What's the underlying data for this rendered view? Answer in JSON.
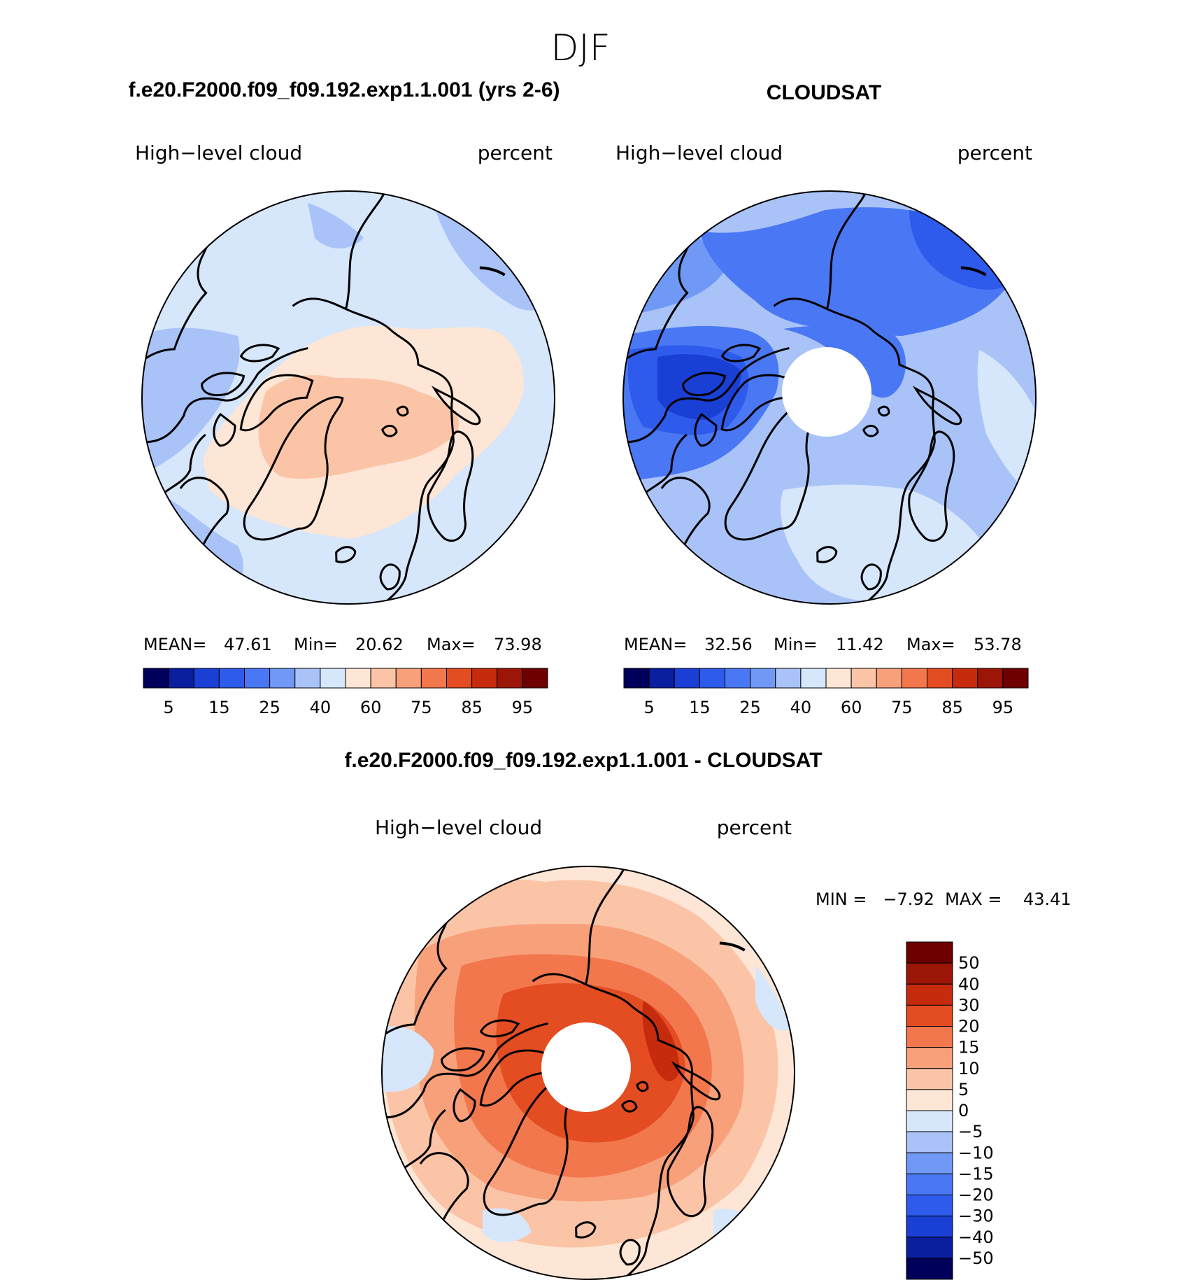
{
  "season": "DJF",
  "panels": {
    "model": {
      "title": "f.e20.F2000.f09_f09.192.exp1.1.001 (yrs 2-6)",
      "left_label": "High−level cloud",
      "right_label": "percent",
      "stats": {
        "mean_label": "MEAN=",
        "mean": "47.61",
        "min_label": "Min=",
        "min": "20.62",
        "max_label": "Max=",
        "max": "73.98"
      }
    },
    "obs": {
      "title": "CLOUDSAT",
      "left_label": "High−level cloud",
      "right_label": "percent",
      "stats": {
        "mean_label": "MEAN=",
        "mean": "32.56",
        "min_label": "Min=",
        "min": "11.42",
        "max_label": "Max=",
        "max": "53.78"
      }
    },
    "diff": {
      "title": "f.e20.F2000.f09_f09.192.exp1.1.001 - CLOUDSAT",
      "left_label": "High−level cloud",
      "right_label": "percent",
      "minmax_text": "MIN =   −7.92  MAX =    43.41"
    }
  },
  "chart_data": [
    {
      "type": "heatmap",
      "projection": "north polar stereographic",
      "title": "f.e20.F2000.f09_f09.192.exp1.1.001 (yrs 2-6)",
      "variable": "High-level cloud",
      "units": "percent",
      "mean": 47.61,
      "min": 20.62,
      "max": 73.98,
      "colorbar": {
        "levels": [
          5,
          10,
          15,
          20,
          25,
          30,
          40,
          50,
          60,
          70,
          75,
          80,
          85,
          90,
          95
        ],
        "tick_labels": [
          "5",
          "15",
          "25",
          "40",
          "60",
          "75",
          "85",
          "95"
        ],
        "colors": [
          "#00005a",
          "#0a1ea0",
          "#1a3fd4",
          "#2e5bec",
          "#4a78f4",
          "#7099f6",
          "#a9c3f8",
          "#d6e6fb",
          "#fde6d5",
          "#fbc4a6",
          "#f7a07a",
          "#f2774d",
          "#e44c22",
          "#c72b0e",
          "#9c1607",
          "#6e0000"
        ]
      }
    },
    {
      "type": "heatmap",
      "projection": "north polar stereographic",
      "title": "CLOUDSAT",
      "variable": "High-level cloud",
      "units": "percent",
      "mean": 32.56,
      "min": 11.42,
      "max": 53.78,
      "colorbar": {
        "levels": [
          5,
          10,
          15,
          20,
          25,
          30,
          40,
          50,
          60,
          70,
          75,
          80,
          85,
          90,
          95
        ],
        "tick_labels": [
          "5",
          "15",
          "25",
          "40",
          "60",
          "75",
          "85",
          "95"
        ],
        "colors": [
          "#00005a",
          "#0a1ea0",
          "#1a3fd4",
          "#2e5bec",
          "#4a78f4",
          "#7099f6",
          "#a9c3f8",
          "#d6e6fb",
          "#fde6d5",
          "#fbc4a6",
          "#f7a07a",
          "#f2774d",
          "#e44c22",
          "#c72b0e",
          "#9c1607",
          "#6e0000"
        ]
      }
    },
    {
      "type": "heatmap",
      "projection": "north polar stereographic",
      "title": "f.e20.F2000.f09_f09.192.exp1.1.001 - CLOUDSAT",
      "variable": "High-level cloud",
      "units": "percent",
      "min": -7.92,
      "max": 43.41,
      "colorbar": {
        "levels": [
          50,
          40,
          30,
          20,
          15,
          10,
          5,
          0,
          -5,
          -10,
          -15,
          -20,
          -30,
          -40,
          -50
        ],
        "tick_labels": [
          "50",
          "40",
          "30",
          "20",
          "15",
          "10",
          "5",
          "0",
          "−5",
          "−10",
          "−15",
          "−20",
          "−30",
          "−40",
          "−50"
        ],
        "colors": [
          "#6e0000",
          "#9c1607",
          "#c72b0e",
          "#e44c22",
          "#f2774d",
          "#f7a07a",
          "#fbc4a6",
          "#fde6d5",
          "#d6e6fb",
          "#a9c3f8",
          "#7099f6",
          "#4a78f4",
          "#2e5bec",
          "#1a3fd4",
          "#0a1ea0",
          "#00005a"
        ]
      }
    }
  ]
}
